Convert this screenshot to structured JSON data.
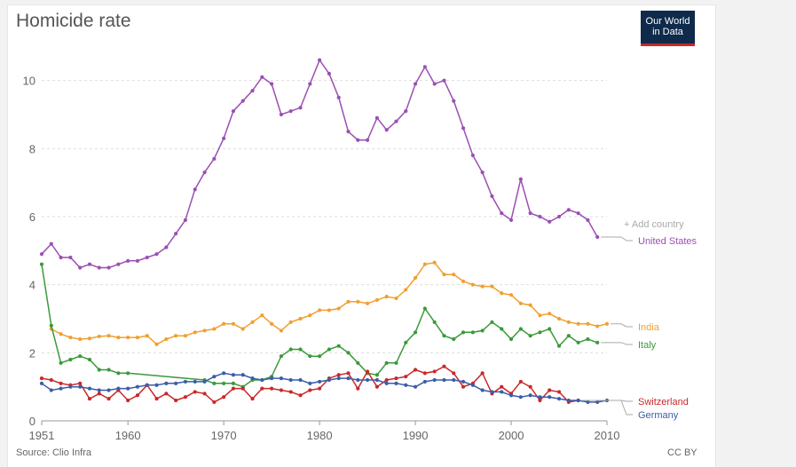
{
  "header": {
    "title": "Homicide rate",
    "logo_line1": "Our World",
    "logo_line2": "in Data"
  },
  "footer": {
    "source": "Source: Clio Infra",
    "license": "CC BY"
  },
  "controls": {
    "add_country": "+ Add country"
  },
  "colors": {
    "grid": "#dddddd",
    "axis": "#999999",
    "label_line": "#aaaaaa"
  },
  "chart_data": {
    "type": "line",
    "title": "Homicide rate",
    "xlabel": "",
    "ylabel": "",
    "xlim": [
      1951,
      2010
    ],
    "ylim": [
      0,
      10.8
    ],
    "x_ticks": [
      "1951",
      "1960",
      "1970",
      "1980",
      "1990",
      "2000",
      "2010"
    ],
    "y_ticks": [
      "0",
      "2",
      "4",
      "6",
      "8",
      "10"
    ],
    "grid": true,
    "series": [
      {
        "name": "United States",
        "color": "#9b4fb3",
        "points": [
          [
            1951,
            4.9
          ],
          [
            1952,
            5.2
          ],
          [
            1953,
            4.8
          ],
          [
            1954,
            4.8
          ],
          [
            1955,
            4.5
          ],
          [
            1956,
            4.6
          ],
          [
            1957,
            4.5
          ],
          [
            1958,
            4.5
          ],
          [
            1959,
            4.6
          ],
          [
            1960,
            4.7
          ],
          [
            1961,
            4.7
          ],
          [
            1962,
            4.8
          ],
          [
            1963,
            4.9
          ],
          [
            1964,
            5.1
          ],
          [
            1965,
            5.5
          ],
          [
            1966,
            5.9
          ],
          [
            1967,
            6.8
          ],
          [
            1968,
            7.3
          ],
          [
            1969,
            7.7
          ],
          [
            1970,
            8.3
          ],
          [
            1971,
            9.1
          ],
          [
            1972,
            9.4
          ],
          [
            1973,
            9.7
          ],
          [
            1974,
            10.1
          ],
          [
            1975,
            9.9
          ],
          [
            1976,
            9.0
          ],
          [
            1977,
            9.1
          ],
          [
            1978,
            9.2
          ],
          [
            1979,
            9.9
          ],
          [
            1980,
            10.6
          ],
          [
            1981,
            10.2
          ],
          [
            1982,
            9.5
          ],
          [
            1983,
            8.5
          ],
          [
            1984,
            8.25
          ],
          [
            1985,
            8.25
          ],
          [
            1986,
            8.9
          ],
          [
            1987,
            8.55
          ],
          [
            1988,
            8.8
          ],
          [
            1989,
            9.1
          ],
          [
            1990,
            9.9
          ],
          [
            1991,
            10.4
          ],
          [
            1992,
            9.9
          ],
          [
            1993,
            10.0
          ],
          [
            1994,
            9.4
          ],
          [
            1995,
            8.6
          ],
          [
            1996,
            7.8
          ],
          [
            1997,
            7.3
          ],
          [
            1998,
            6.6
          ],
          [
            1999,
            6.1
          ],
          [
            2000,
            5.9
          ],
          [
            2001,
            7.1
          ],
          [
            2002,
            6.1
          ],
          [
            2003,
            6.0
          ],
          [
            2004,
            5.85
          ],
          [
            2005,
            6.0
          ],
          [
            2006,
            6.2
          ],
          [
            2007,
            6.1
          ],
          [
            2008,
            5.9
          ],
          [
            2009,
            5.4
          ]
        ]
      },
      {
        "name": "India",
        "color": "#f0a030",
        "points": [
          [
            1952,
            2.7
          ],
          [
            1953,
            2.55
          ],
          [
            1954,
            2.45
          ],
          [
            1955,
            2.4
          ],
          [
            1956,
            2.42
          ],
          [
            1957,
            2.48
          ],
          [
            1958,
            2.5
          ],
          [
            1959,
            2.45
          ],
          [
            1960,
            2.45
          ],
          [
            1961,
            2.45
          ],
          [
            1962,
            2.5
          ],
          [
            1963,
            2.25
          ],
          [
            1964,
            2.4
          ],
          [
            1965,
            2.5
          ],
          [
            1966,
            2.5
          ],
          [
            1967,
            2.6
          ],
          [
            1968,
            2.65
          ],
          [
            1969,
            2.7
          ],
          [
            1970,
            2.85
          ],
          [
            1971,
            2.85
          ],
          [
            1972,
            2.7
          ],
          [
            1973,
            2.9
          ],
          [
            1974,
            3.1
          ],
          [
            1975,
            2.85
          ],
          [
            1976,
            2.65
          ],
          [
            1977,
            2.9
          ],
          [
            1978,
            3.0
          ],
          [
            1979,
            3.1
          ],
          [
            1980,
            3.25
          ],
          [
            1981,
            3.25
          ],
          [
            1982,
            3.3
          ],
          [
            1983,
            3.5
          ],
          [
            1984,
            3.5
          ],
          [
            1985,
            3.45
          ],
          [
            1986,
            3.55
          ],
          [
            1987,
            3.65
          ],
          [
            1988,
            3.6
          ],
          [
            1989,
            3.85
          ],
          [
            1990,
            4.2
          ],
          [
            1991,
            4.6
          ],
          [
            1992,
            4.65
          ],
          [
            1993,
            4.3
          ],
          [
            1994,
            4.3
          ],
          [
            1995,
            4.1
          ],
          [
            1996,
            4.0
          ],
          [
            1997,
            3.95
          ],
          [
            1998,
            3.95
          ],
          [
            1999,
            3.75
          ],
          [
            2000,
            3.7
          ],
          [
            2001,
            3.45
          ],
          [
            2002,
            3.4
          ],
          [
            2003,
            3.1
          ],
          [
            2004,
            3.15
          ],
          [
            2005,
            3.0
          ],
          [
            2006,
            2.9
          ],
          [
            2007,
            2.85
          ],
          [
            2008,
            2.85
          ],
          [
            2009,
            2.78
          ],
          [
            2010,
            2.85
          ]
        ]
      },
      {
        "name": "Italy",
        "color": "#3a9a3a",
        "points": [
          [
            1951,
            4.6
          ],
          [
            1952,
            2.8
          ],
          [
            1953,
            1.7
          ],
          [
            1954,
            1.8
          ],
          [
            1955,
            1.9
          ],
          [
            1956,
            1.8
          ],
          [
            1957,
            1.5
          ],
          [
            1958,
            1.5
          ],
          [
            1959,
            1.4
          ],
          [
            1960,
            1.4
          ],
          [
            1968,
            1.2
          ],
          [
            1969,
            1.1
          ],
          [
            1970,
            1.1
          ],
          [
            1971,
            1.1
          ],
          [
            1972,
            1.0
          ],
          [
            1973,
            1.2
          ],
          [
            1974,
            1.2
          ],
          [
            1975,
            1.3
          ],
          [
            1976,
            1.9
          ],
          [
            1977,
            2.1
          ],
          [
            1978,
            2.1
          ],
          [
            1979,
            1.9
          ],
          [
            1980,
            1.9
          ],
          [
            1981,
            2.1
          ],
          [
            1982,
            2.2
          ],
          [
            1983,
            2.0
          ],
          [
            1984,
            1.7
          ],
          [
            1985,
            1.4
          ],
          [
            1986,
            1.35
          ],
          [
            1987,
            1.7
          ],
          [
            1988,
            1.7
          ],
          [
            1989,
            2.3
          ],
          [
            1990,
            2.6
          ],
          [
            1991,
            3.3
          ],
          [
            1992,
            2.9
          ],
          [
            1993,
            2.5
          ],
          [
            1994,
            2.4
          ],
          [
            1995,
            2.6
          ],
          [
            1996,
            2.6
          ],
          [
            1997,
            2.65
          ],
          [
            1998,
            2.9
          ],
          [
            1999,
            2.7
          ],
          [
            2000,
            2.4
          ],
          [
            2001,
            2.7
          ],
          [
            2002,
            2.5
          ],
          [
            2003,
            2.6
          ],
          [
            2004,
            2.7
          ],
          [
            2005,
            2.2
          ],
          [
            2006,
            2.5
          ],
          [
            2007,
            2.3
          ],
          [
            2008,
            2.4
          ],
          [
            2009,
            2.3
          ]
        ]
      },
      {
        "name": "Switzerland",
        "color": "#c9282b",
        "points": [
          [
            1951,
            1.25
          ],
          [
            1952,
            1.2
          ],
          [
            1953,
            1.1
          ],
          [
            1954,
            1.05
          ],
          [
            1955,
            1.1
          ],
          [
            1956,
            0.65
          ],
          [
            1957,
            0.8
          ],
          [
            1958,
            0.65
          ],
          [
            1959,
            0.9
          ],
          [
            1960,
            0.6
          ],
          [
            1961,
            0.75
          ],
          [
            1962,
            1.05
          ],
          [
            1963,
            0.65
          ],
          [
            1964,
            0.8
          ],
          [
            1965,
            0.6
          ],
          [
            1966,
            0.7
          ],
          [
            1967,
            0.85
          ],
          [
            1968,
            0.8
          ],
          [
            1969,
            0.55
          ],
          [
            1970,
            0.7
          ],
          [
            1971,
            0.95
          ],
          [
            1972,
            0.95
          ],
          [
            1973,
            0.65
          ],
          [
            1974,
            0.95
          ],
          [
            1975,
            0.95
          ],
          [
            1976,
            0.9
          ],
          [
            1977,
            0.85
          ],
          [
            1978,
            0.75
          ],
          [
            1979,
            0.9
          ],
          [
            1980,
            0.95
          ],
          [
            1981,
            1.25
          ],
          [
            1982,
            1.35
          ],
          [
            1983,
            1.4
          ],
          [
            1984,
            0.95
          ],
          [
            1985,
            1.45
          ],
          [
            1986,
            1.0
          ],
          [
            1987,
            1.2
          ],
          [
            1988,
            1.25
          ],
          [
            1989,
            1.3
          ],
          [
            1990,
            1.5
          ],
          [
            1991,
            1.4
          ],
          [
            1992,
            1.45
          ],
          [
            1993,
            1.6
          ],
          [
            1994,
            1.4
          ],
          [
            1995,
            1.0
          ],
          [
            1996,
            1.1
          ],
          [
            1997,
            1.4
          ],
          [
            1998,
            0.8
          ],
          [
            1999,
            1.0
          ],
          [
            2000,
            0.8
          ],
          [
            2001,
            1.15
          ],
          [
            2002,
            1.0
          ],
          [
            2003,
            0.6
          ],
          [
            2004,
            0.9
          ],
          [
            2005,
            0.85
          ],
          [
            2006,
            0.55
          ],
          [
            2007,
            0.6
          ]
        ]
      },
      {
        "name": "Germany",
        "color": "#3a5da8",
        "points": [
          [
            1951,
            1.1
          ],
          [
            1952,
            0.9
          ],
          [
            1953,
            0.95
          ],
          [
            1954,
            1.0
          ],
          [
            1955,
            1.0
          ],
          [
            1956,
            0.95
          ],
          [
            1957,
            0.9
          ],
          [
            1958,
            0.9
          ],
          [
            1959,
            0.95
          ],
          [
            1960,
            0.95
          ],
          [
            1961,
            1.0
          ],
          [
            1962,
            1.05
          ],
          [
            1963,
            1.05
          ],
          [
            1964,
            1.1
          ],
          [
            1965,
            1.1
          ],
          [
            1966,
            1.15
          ],
          [
            1967,
            1.15
          ],
          [
            1968,
            1.15
          ],
          [
            1969,
            1.3
          ],
          [
            1970,
            1.4
          ],
          [
            1971,
            1.35
          ],
          [
            1972,
            1.35
          ],
          [
            1973,
            1.25
          ],
          [
            1974,
            1.2
          ],
          [
            1975,
            1.25
          ],
          [
            1976,
            1.25
          ],
          [
            1977,
            1.2
          ],
          [
            1978,
            1.2
          ],
          [
            1979,
            1.1
          ],
          [
            1980,
            1.15
          ],
          [
            1981,
            1.2
          ],
          [
            1982,
            1.25
          ],
          [
            1983,
            1.25
          ],
          [
            1984,
            1.2
          ],
          [
            1985,
            1.2
          ],
          [
            1986,
            1.2
          ],
          [
            1987,
            1.1
          ],
          [
            1988,
            1.1
          ],
          [
            1989,
            1.05
          ],
          [
            1990,
            1.0
          ],
          [
            1991,
            1.15
          ],
          [
            1992,
            1.2
          ],
          [
            1993,
            1.2
          ],
          [
            1994,
            1.2
          ],
          [
            1995,
            1.15
          ],
          [
            1996,
            1.05
          ],
          [
            1997,
            0.9
          ],
          [
            1998,
            0.85
          ],
          [
            1999,
            0.85
          ],
          [
            2000,
            0.75
          ],
          [
            2001,
            0.7
          ],
          [
            2002,
            0.75
          ],
          [
            2003,
            0.7
          ],
          [
            2004,
            0.7
          ],
          [
            2005,
            0.65
          ],
          [
            2006,
            0.6
          ],
          [
            2007,
            0.6
          ],
          [
            2008,
            0.55
          ],
          [
            2009,
            0.55
          ],
          [
            2010,
            0.6
          ]
        ]
      }
    ]
  }
}
